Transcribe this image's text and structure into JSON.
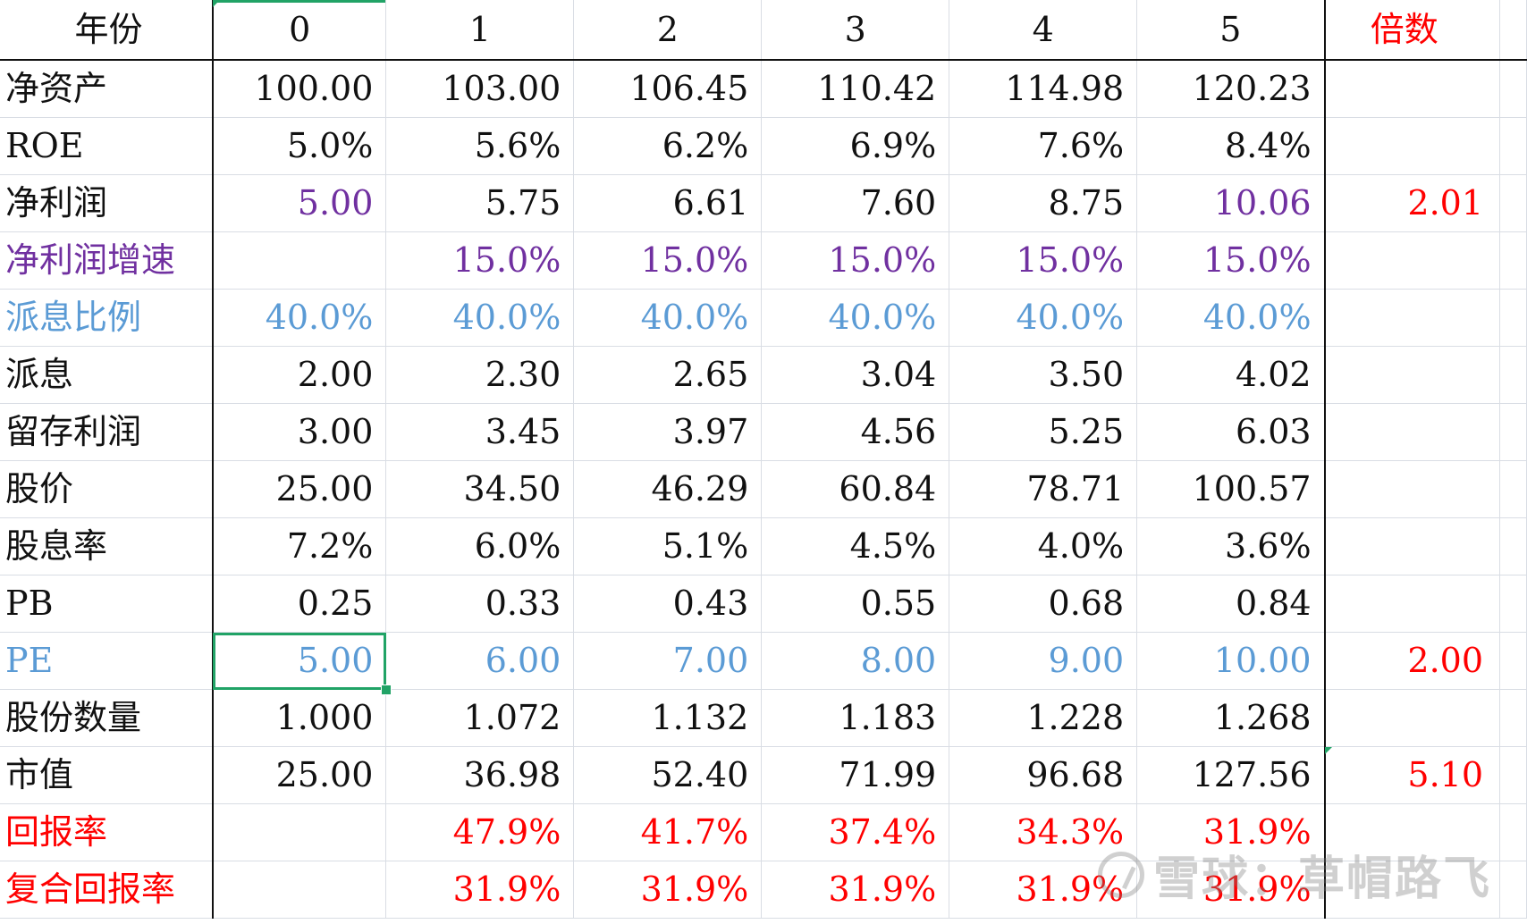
{
  "colors": {
    "purple": "#7030A0",
    "blue": "#5B9BD5",
    "red": "#FF0000",
    "selection": "#21A366"
  },
  "header": {
    "label": "年份",
    "years": [
      "0",
      "1",
      "2",
      "3",
      "4",
      "5"
    ],
    "multiple": "倍数"
  },
  "rows": [
    {
      "label": "净资产",
      "values": [
        "100.00",
        "103.00",
        "106.45",
        "110.42",
        "114.98",
        "120.23"
      ],
      "multiple": "",
      "label_color": "black",
      "value_colors": [
        "black",
        "black",
        "black",
        "black",
        "black",
        "black"
      ]
    },
    {
      "label": "ROE",
      "values": [
        "5.0%",
        "5.6%",
        "6.2%",
        "6.9%",
        "7.6%",
        "8.4%"
      ],
      "multiple": "",
      "label_color": "black",
      "value_colors": [
        "black",
        "black",
        "black",
        "black",
        "black",
        "black"
      ]
    },
    {
      "label": "净利润",
      "values": [
        "5.00",
        "5.75",
        "6.61",
        "7.60",
        "8.75",
        "10.06"
      ],
      "multiple": "2.01",
      "label_color": "black",
      "value_colors": [
        "purple",
        "black",
        "black",
        "black",
        "black",
        "purple"
      ]
    },
    {
      "label": "净利润增速",
      "values": [
        "",
        "15.0%",
        "15.0%",
        "15.0%",
        "15.0%",
        "15.0%"
      ],
      "multiple": "",
      "label_color": "purple",
      "value_colors": [
        "purple",
        "purple",
        "purple",
        "purple",
        "purple",
        "purple"
      ]
    },
    {
      "label": "派息比例",
      "values": [
        "40.0%",
        "40.0%",
        "40.0%",
        "40.0%",
        "40.0%",
        "40.0%"
      ],
      "multiple": "",
      "label_color": "blue",
      "value_colors": [
        "blue",
        "blue",
        "blue",
        "blue",
        "blue",
        "blue"
      ]
    },
    {
      "label": "派息",
      "values": [
        "2.00",
        "2.30",
        "2.65",
        "3.04",
        "3.50",
        "4.02"
      ],
      "multiple": "",
      "label_color": "black",
      "value_colors": [
        "black",
        "black",
        "black",
        "black",
        "black",
        "black"
      ]
    },
    {
      "label": "留存利润",
      "values": [
        "3.00",
        "3.45",
        "3.97",
        "4.56",
        "5.25",
        "6.03"
      ],
      "multiple": "",
      "label_color": "black",
      "value_colors": [
        "black",
        "black",
        "black",
        "black",
        "black",
        "black"
      ]
    },
    {
      "label": "股价",
      "values": [
        "25.00",
        "34.50",
        "46.29",
        "60.84",
        "78.71",
        "100.57"
      ],
      "multiple": "",
      "label_color": "black",
      "value_colors": [
        "black",
        "black",
        "black",
        "black",
        "black",
        "black"
      ]
    },
    {
      "label": "股息率",
      "values": [
        "7.2%",
        "6.0%",
        "5.1%",
        "4.5%",
        "4.0%",
        "3.6%"
      ],
      "multiple": "",
      "label_color": "black",
      "value_colors": [
        "black",
        "black",
        "black",
        "black",
        "black",
        "black"
      ]
    },
    {
      "label": "PB",
      "values": [
        "0.25",
        "0.33",
        "0.43",
        "0.55",
        "0.68",
        "0.84"
      ],
      "multiple": "",
      "label_color": "black",
      "value_colors": [
        "black",
        "black",
        "black",
        "black",
        "black",
        "black"
      ]
    },
    {
      "label": "PE",
      "values": [
        "5.00",
        "6.00",
        "7.00",
        "8.00",
        "9.00",
        "10.00"
      ],
      "multiple": "2.00",
      "label_color": "blue",
      "value_colors": [
        "blue",
        "blue",
        "blue",
        "blue",
        "blue",
        "blue"
      ]
    },
    {
      "label": "股份数量",
      "values": [
        "1.000",
        "1.072",
        "1.132",
        "1.183",
        "1.228",
        "1.268"
      ],
      "multiple": "",
      "label_color": "black",
      "value_colors": [
        "black",
        "black",
        "black",
        "black",
        "black",
        "black"
      ]
    },
    {
      "label": "市值",
      "values": [
        "25.00",
        "36.98",
        "52.40",
        "71.99",
        "96.68",
        "127.56"
      ],
      "multiple": "5.10",
      "label_color": "black",
      "value_colors": [
        "black",
        "black",
        "black",
        "black",
        "black",
        "black"
      ]
    },
    {
      "label": "回报率",
      "values": [
        "",
        "47.9%",
        "41.7%",
        "37.4%",
        "34.3%",
        "31.9%"
      ],
      "multiple": "",
      "label_color": "red",
      "value_colors": [
        "red",
        "red",
        "red",
        "red",
        "red",
        "red"
      ]
    },
    {
      "label": "复合回报率",
      "values": [
        "",
        "31.9%",
        "31.9%",
        "31.9%",
        "31.9%",
        "31.9%"
      ],
      "multiple": "",
      "label_color": "red",
      "value_colors": [
        "red",
        "red",
        "red",
        "red",
        "red",
        "red"
      ]
    }
  ],
  "watermark": "雪球：草帽路飞"
}
